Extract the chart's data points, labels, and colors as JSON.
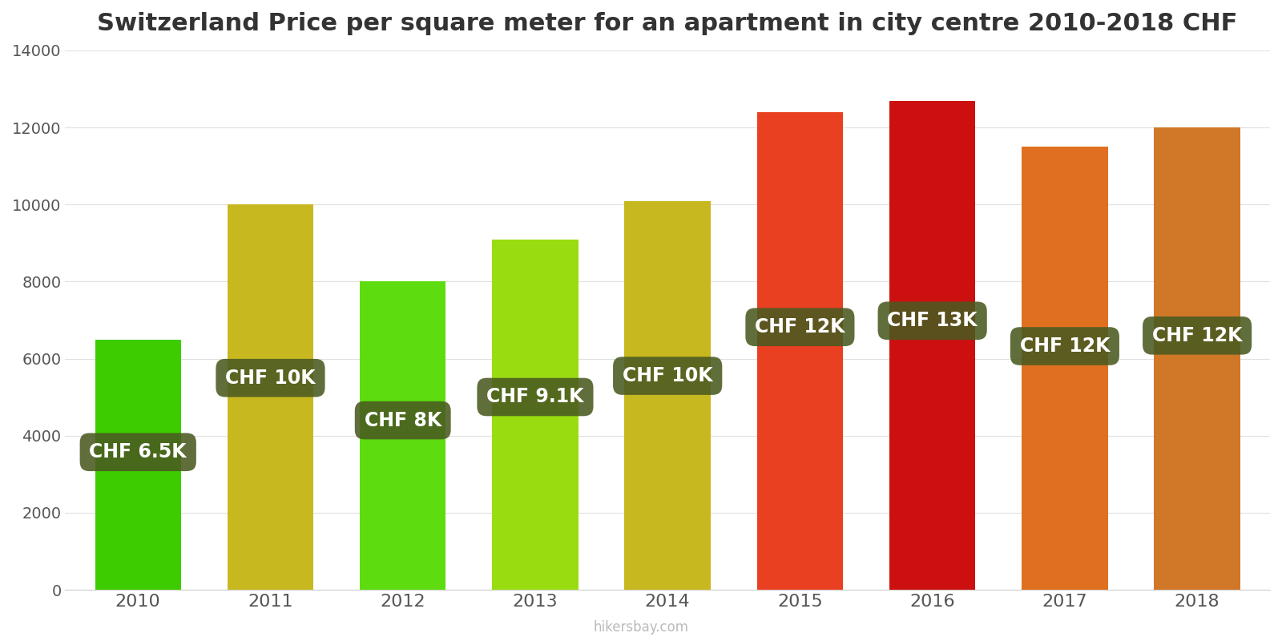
{
  "years": [
    2010,
    2011,
    2012,
    2013,
    2014,
    2015,
    2016,
    2017,
    2018
  ],
  "values": [
    6500,
    10000,
    8000,
    9100,
    10100,
    12400,
    12700,
    11500,
    12000
  ],
  "bar_colors": [
    "#3dcc00",
    "#c8b820",
    "#5ddd10",
    "#99dd10",
    "#c8b820",
    "#e84020",
    "#cc1010",
    "#e07020",
    "#d07828"
  ],
  "labels": [
    "CHF 6.5K",
    "CHF 10K",
    "CHF 8K",
    "CHF 9.1K",
    "CHF 10K",
    "CHF 12K",
    "CHF 13K",
    "CHF 12K",
    "CHF 12K"
  ],
  "label_bg_color": "#4a5a20",
  "title": "Switzerland Price per square meter for an apartment in city centre 2010-2018 CHF",
  "ylim": [
    0,
    14000
  ],
  "yticks": [
    0,
    2000,
    4000,
    6000,
    8000,
    10000,
    12000,
    14000
  ],
  "watermark": "hikersbay.com",
  "bg_color": "#ffffff",
  "title_fontsize": 22,
  "label_fontsize": 17
}
